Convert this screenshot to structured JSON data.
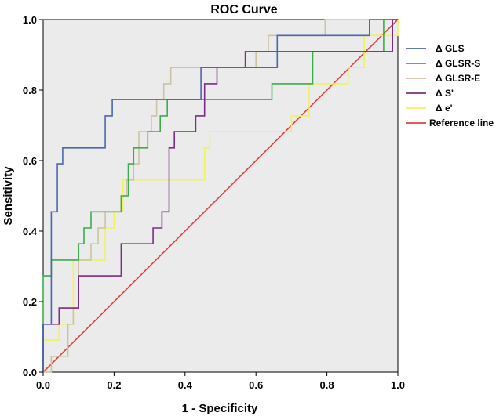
{
  "chart_data": {
    "type": "line",
    "title": "ROC Curve",
    "xlabel": "1 - Specificity",
    "ylabel": "Sensitivity",
    "xlim": [
      0,
      1
    ],
    "ylim": [
      0,
      1
    ],
    "xticks": [
      "0.0",
      "0.2",
      "0.4",
      "0.6",
      "0.8",
      "1.0"
    ],
    "yticks": [
      "0.0",
      "0.2",
      "0.4",
      "0.6",
      "0.8",
      "1.0"
    ],
    "grid": false,
    "legend_position": "right",
    "plot_background": "#ebebeb",
    "series": [
      {
        "name": "Δ GLS",
        "color": "#4a66ad",
        "points": [
          [
            0,
            0
          ],
          [
            0,
            0.136
          ],
          [
            0.023,
            0.136
          ],
          [
            0.023,
            0.455
          ],
          [
            0.04,
            0.455
          ],
          [
            0.04,
            0.591
          ],
          [
            0.055,
            0.591
          ],
          [
            0.055,
            0.636
          ],
          [
            0.175,
            0.636
          ],
          [
            0.175,
            0.727
          ],
          [
            0.195,
            0.727
          ],
          [
            0.195,
            0.773
          ],
          [
            0.445,
            0.773
          ],
          [
            0.445,
            0.864
          ],
          [
            0.66,
            0.864
          ],
          [
            0.66,
            0.955
          ],
          [
            0.92,
            0.955
          ],
          [
            0.92,
            1.0
          ],
          [
            1.0,
            1.0
          ]
        ]
      },
      {
        "name": "Δ GLSR-S",
        "color": "#3cad4a",
        "points": [
          [
            0,
            0
          ],
          [
            0,
            0.273
          ],
          [
            0.023,
            0.273
          ],
          [
            0.023,
            0.318
          ],
          [
            0.1,
            0.318
          ],
          [
            0.1,
            0.364
          ],
          [
            0.115,
            0.364
          ],
          [
            0.115,
            0.409
          ],
          [
            0.135,
            0.409
          ],
          [
            0.135,
            0.455
          ],
          [
            0.22,
            0.455
          ],
          [
            0.22,
            0.5
          ],
          [
            0.24,
            0.5
          ],
          [
            0.24,
            0.591
          ],
          [
            0.255,
            0.591
          ],
          [
            0.255,
            0.636
          ],
          [
            0.295,
            0.636
          ],
          [
            0.295,
            0.682
          ],
          [
            0.33,
            0.682
          ],
          [
            0.33,
            0.727
          ],
          [
            0.35,
            0.727
          ],
          [
            0.35,
            0.773
          ],
          [
            0.645,
            0.773
          ],
          [
            0.645,
            0.818
          ],
          [
            0.76,
            0.818
          ],
          [
            0.76,
            0.909
          ],
          [
            0.96,
            0.909
          ],
          [
            0.96,
            1.0
          ],
          [
            1.0,
            1.0
          ]
        ]
      },
      {
        "name": "Δ GLSR-E",
        "color": "#cdc3a0",
        "points": [
          [
            0,
            0
          ],
          [
            0.023,
            0
          ],
          [
            0.023,
            0.045
          ],
          [
            0.07,
            0.045
          ],
          [
            0.07,
            0.136
          ],
          [
            0.085,
            0.136
          ],
          [
            0.085,
            0.182
          ],
          [
            0.1,
            0.182
          ],
          [
            0.1,
            0.318
          ],
          [
            0.135,
            0.318
          ],
          [
            0.135,
            0.364
          ],
          [
            0.155,
            0.364
          ],
          [
            0.155,
            0.409
          ],
          [
            0.175,
            0.409
          ],
          [
            0.175,
            0.455
          ],
          [
            0.22,
            0.455
          ],
          [
            0.22,
            0.5
          ],
          [
            0.235,
            0.5
          ],
          [
            0.235,
            0.545
          ],
          [
            0.255,
            0.545
          ],
          [
            0.255,
            0.591
          ],
          [
            0.27,
            0.591
          ],
          [
            0.27,
            0.682
          ],
          [
            0.305,
            0.682
          ],
          [
            0.305,
            0.727
          ],
          [
            0.32,
            0.727
          ],
          [
            0.32,
            0.773
          ],
          [
            0.34,
            0.773
          ],
          [
            0.34,
            0.818
          ],
          [
            0.36,
            0.818
          ],
          [
            0.36,
            0.864
          ],
          [
            0.6,
            0.864
          ],
          [
            0.6,
            0.909
          ],
          [
            0.635,
            0.909
          ],
          [
            0.635,
            0.955
          ],
          [
            0.795,
            0.955
          ],
          [
            0.795,
            1.0
          ],
          [
            1.0,
            1.0
          ]
        ]
      },
      {
        "name": "Δ S'",
        "color": "#7b2d86",
        "points": [
          [
            0,
            0
          ],
          [
            0,
            0.136
          ],
          [
            0.045,
            0.136
          ],
          [
            0.045,
            0.182
          ],
          [
            0.1,
            0.182
          ],
          [
            0.1,
            0.273
          ],
          [
            0.22,
            0.273
          ],
          [
            0.22,
            0.364
          ],
          [
            0.31,
            0.364
          ],
          [
            0.31,
            0.409
          ],
          [
            0.335,
            0.409
          ],
          [
            0.335,
            0.455
          ],
          [
            0.355,
            0.455
          ],
          [
            0.355,
            0.636
          ],
          [
            0.37,
            0.636
          ],
          [
            0.37,
            0.682
          ],
          [
            0.43,
            0.682
          ],
          [
            0.43,
            0.727
          ],
          [
            0.455,
            0.727
          ],
          [
            0.455,
            0.818
          ],
          [
            0.49,
            0.818
          ],
          [
            0.49,
            0.864
          ],
          [
            0.57,
            0.864
          ],
          [
            0.57,
            0.909
          ],
          [
            0.985,
            0.909
          ],
          [
            0.985,
            1.0
          ],
          [
            1.0,
            1.0
          ]
        ]
      },
      {
        "name": "Δ e'",
        "color": "#f2f25a",
        "points": [
          [
            0,
            0
          ],
          [
            0,
            0.091
          ],
          [
            0.045,
            0.091
          ],
          [
            0.045,
            0.136
          ],
          [
            0.085,
            0.136
          ],
          [
            0.085,
            0.318
          ],
          [
            0.175,
            0.318
          ],
          [
            0.175,
            0.409
          ],
          [
            0.2,
            0.409
          ],
          [
            0.2,
            0.455
          ],
          [
            0.225,
            0.455
          ],
          [
            0.225,
            0.545
          ],
          [
            0.455,
            0.545
          ],
          [
            0.455,
            0.636
          ],
          [
            0.47,
            0.636
          ],
          [
            0.47,
            0.682
          ],
          [
            0.7,
            0.682
          ],
          [
            0.7,
            0.727
          ],
          [
            0.75,
            0.727
          ],
          [
            0.75,
            0.818
          ],
          [
            0.86,
            0.818
          ],
          [
            0.86,
            0.864
          ],
          [
            0.905,
            0.864
          ],
          [
            0.905,
            0.955
          ],
          [
            1.0,
            0.955
          ],
          [
            1.0,
            1.0
          ]
        ]
      },
      {
        "name": "Reference line",
        "color": "#e04040",
        "points": [
          [
            0,
            0
          ],
          [
            1,
            1
          ]
        ]
      }
    ]
  }
}
